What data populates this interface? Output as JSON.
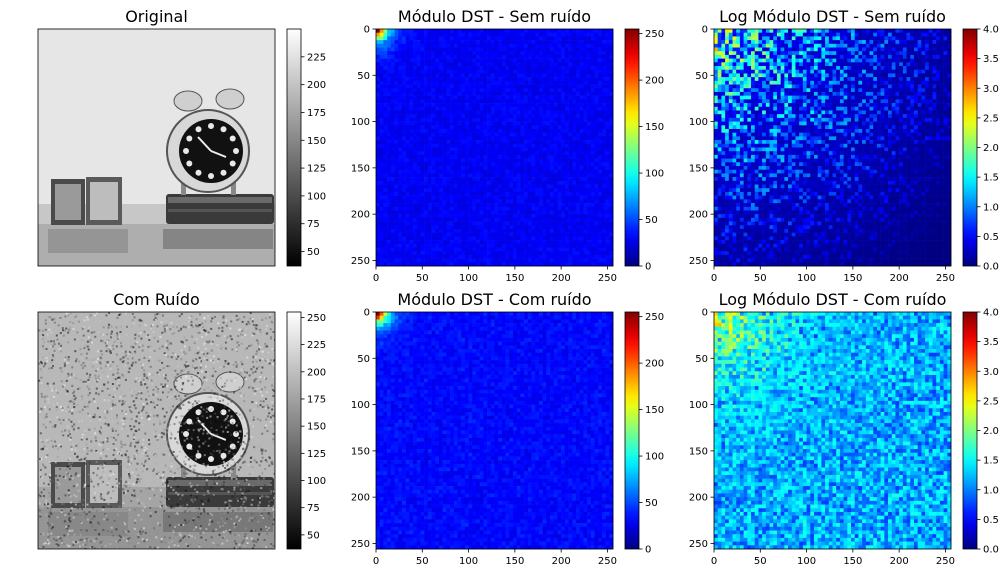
{
  "colors": {
    "axes": "#000000",
    "background": "#ffffff"
  },
  "chart_data": [
    {
      "type": "heatmap",
      "title": "Original",
      "colormap": "gray",
      "image_content": "grayscale photo of an alarm clock on a book and a picture frame on a table",
      "noise": false,
      "axes_visible": false,
      "colorbar": {
        "range": [
          37,
          250
        ],
        "ticks": [
          50,
          75,
          100,
          125,
          150,
          175,
          200,
          225
        ]
      }
    },
    {
      "type": "heatmap",
      "title": "Módulo DST - Sem ruído",
      "colormap": "jet",
      "x_range": [
        0,
        256
      ],
      "y_range": [
        0,
        256
      ],
      "xticks": [
        0,
        50,
        100,
        150,
        200,
        250
      ],
      "yticks": [
        0,
        50,
        100,
        150,
        200,
        250
      ],
      "value_range": [
        0,
        255
      ],
      "pattern": "energy concentrated in low-frequency top-left corner, near zero elsewhere",
      "colorbar": {
        "range": [
          0,
          255
        ],
        "ticks": [
          0,
          50,
          100,
          150,
          200,
          250
        ]
      }
    },
    {
      "type": "heatmap",
      "title": "Log Módulo DST - Sem ruído",
      "colormap": "jet",
      "x_range": [
        0,
        256
      ],
      "y_range": [
        0,
        256
      ],
      "xticks": [
        0,
        50,
        100,
        150,
        200,
        250
      ],
      "yticks": [
        0,
        50,
        100,
        150,
        200,
        250
      ],
      "value_range": [
        0,
        4.0
      ],
      "pattern": "high values in top-left corner, decaying toward bottom-right; sparse background",
      "colorbar": {
        "range": [
          0,
          4.0
        ],
        "ticks": [
          "0.0",
          "0.5",
          "1.0",
          "1.5",
          "2.0",
          "2.5",
          "3.0",
          "3.5",
          "4.0"
        ]
      }
    },
    {
      "type": "heatmap",
      "title": "Com Ruído",
      "colormap": "gray",
      "image_content": "same alarm clock photo with heavy additive noise",
      "noise": true,
      "axes_visible": false,
      "colorbar": {
        "range": [
          37,
          255
        ],
        "ticks": [
          50,
          75,
          100,
          125,
          150,
          175,
          200,
          225,
          250
        ]
      }
    },
    {
      "type": "heatmap",
      "title": "Módulo DST - Com ruído",
      "colormap": "jet",
      "x_range": [
        0,
        256
      ],
      "y_range": [
        0,
        256
      ],
      "xticks": [
        0,
        50,
        100,
        150,
        200,
        250
      ],
      "yticks": [
        0,
        50,
        100,
        150,
        200,
        250
      ],
      "value_range": [
        0,
        255
      ],
      "pattern": "energy in top-left corner plus uniform noise floor across all frequencies",
      "colorbar": {
        "range": [
          0,
          255
        ],
        "ticks": [
          0,
          50,
          100,
          150,
          200,
          250
        ]
      }
    },
    {
      "type": "heatmap",
      "title": "Log Módulo DST - Com ruído",
      "colormap": "jet",
      "x_range": [
        0,
        256
      ],
      "y_range": [
        0,
        256
      ],
      "xticks": [
        0,
        50,
        100,
        150,
        200,
        250
      ],
      "yticks": [
        0,
        50,
        100,
        150,
        200,
        250
      ],
      "value_range": [
        0,
        4.0
      ],
      "pattern": "top-left corner high, dense noisy background across whole plane",
      "colorbar": {
        "range": [
          0,
          4.0
        ],
        "ticks": [
          "0.0",
          "0.5",
          "1.0",
          "1.5",
          "2.0",
          "2.5",
          "3.0",
          "3.5",
          "4.0"
        ]
      }
    }
  ]
}
